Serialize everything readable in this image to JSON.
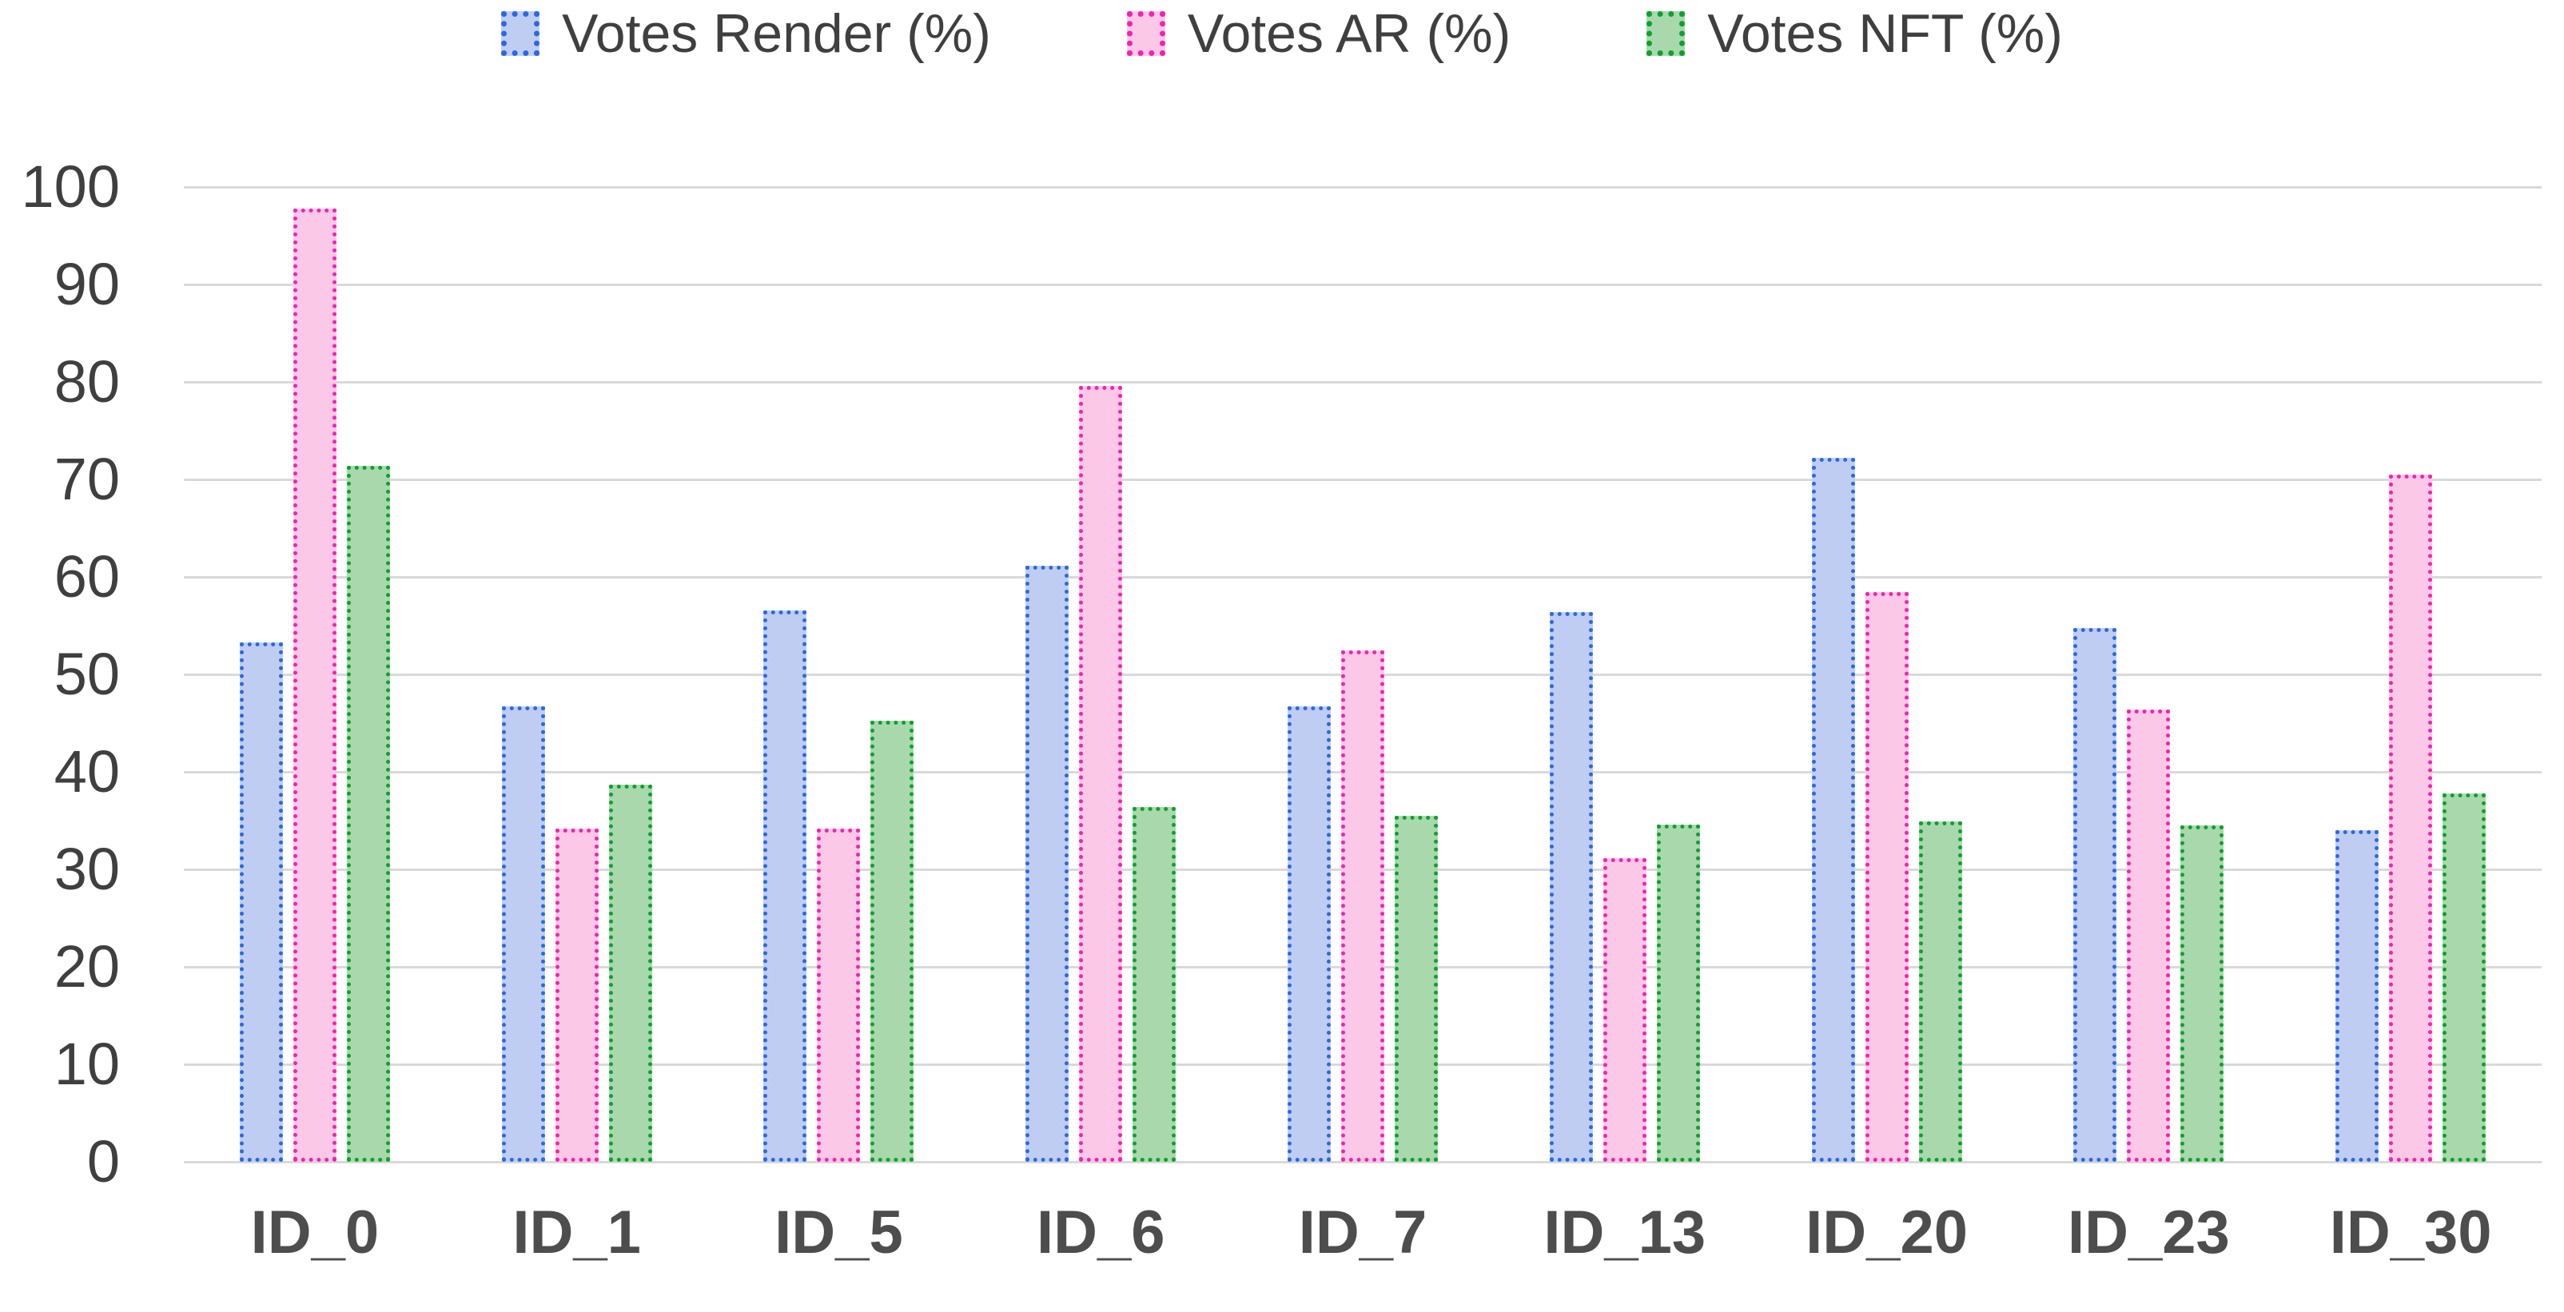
{
  "chart_data": {
    "type": "bar",
    "title": "",
    "xlabel": "",
    "ylabel": "",
    "grid": true,
    "legend_position": "top",
    "ylim": [
      0,
      100
    ],
    "yticks": [
      0,
      10,
      20,
      30,
      40,
      50,
      60,
      70,
      80,
      90,
      100
    ],
    "categories": [
      "ID_0",
      "ID_1",
      "ID_5",
      "ID_6",
      "ID_7",
      "ID_13",
      "ID_20",
      "ID_23",
      "ID_30"
    ],
    "series": [
      {
        "name": "Votes Render (%)",
        "fill": "#bfcdf3",
        "border": "#2a69e2",
        "values": [
          52.5,
          45.9,
          55.7,
          60.3,
          45.9,
          55.6,
          71.4,
          53.9,
          33.2
        ]
      },
      {
        "name": "Votes AR (%)",
        "fill": "#fcc8e7",
        "border": "#f322b1",
        "values": [
          97.0,
          33.4,
          33.4,
          78.8,
          51.6,
          30.3,
          57.6,
          45.6,
          69.7
        ]
      },
      {
        "name": "Votes NFT (%)",
        "fill": "#a9d8ad",
        "border": "#0ba22d",
        "values": [
          70.6,
          37.9,
          44.4,
          35.6,
          34.7,
          33.8,
          34.1,
          33.7,
          37.0
        ]
      }
    ]
  },
  "colors": {
    "gridline": "#d9d9d9",
    "axis_text": "#3f3f3f",
    "category_text": "#4d4d4d",
    "background": "#ffffff"
  }
}
